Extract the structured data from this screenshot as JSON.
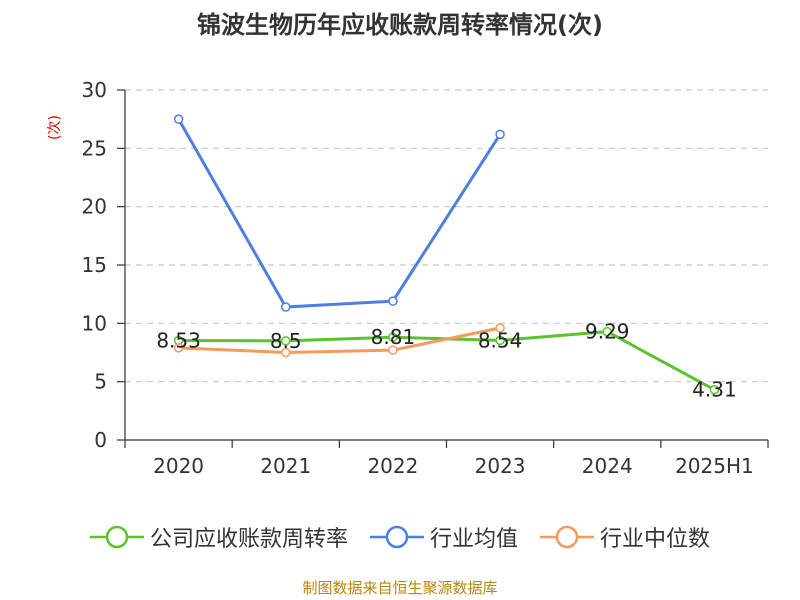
{
  "title": "锦波生物历年应收账款周转率情况(次)",
  "source": "制图数据来自恒生聚源数据库",
  "chart_data": {
    "type": "line",
    "title": "锦波生物历年应收账款周转率情况(次)",
    "xlabel": "",
    "ylabel": "(次)",
    "categories": [
      "2020",
      "2021",
      "2022",
      "2023",
      "2024",
      "2025H1"
    ],
    "ylim": [
      0,
      30
    ],
    "yticks": [
      0,
      5,
      10,
      15,
      20,
      25,
      30
    ],
    "grid": true,
    "legend_position": "bottom",
    "series": [
      {
        "name": "公司应收账款周转率",
        "color": "#5cc32e",
        "values": [
          8.53,
          8.5,
          8.81,
          8.54,
          9.29,
          4.31
        ],
        "labels": [
          "8.53",
          "8.5",
          "8.81",
          "8.54",
          "9.29",
          "4.31"
        ]
      },
      {
        "name": "行业均值",
        "color": "#4f7ee0",
        "values": [
          27.5,
          11.4,
          11.9,
          26.2,
          null,
          null
        ]
      },
      {
        "name": "行业中位数",
        "color": "#f39a5e",
        "values": [
          7.9,
          7.5,
          7.7,
          9.6,
          null,
          null
        ]
      }
    ]
  }
}
